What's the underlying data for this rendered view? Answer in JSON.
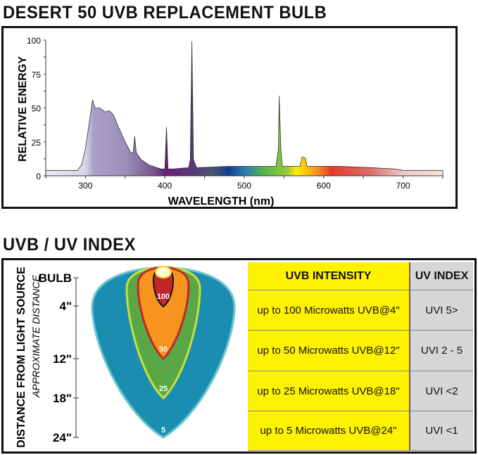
{
  "title": "DESERT 50 UVB REPLACEMENT BULB",
  "section2_title": "UVB / UV INDEX",
  "chart_data": {
    "type": "area",
    "xlabel": "WAVELENGTH (nm)",
    "ylabel": "RELATIVE ENERGY",
    "xlim": [
      250,
      750
    ],
    "ylim": [
      0,
      100
    ],
    "xticks": [
      300,
      400,
      500,
      600,
      700
    ],
    "yticks": [
      0,
      25,
      50,
      75,
      100
    ],
    "grid": false,
    "fill": "visible spectrum gradient",
    "points": [
      [
        250,
        4
      ],
      [
        290,
        4
      ],
      [
        295,
        8
      ],
      [
        300,
        20
      ],
      [
        305,
        40
      ],
      [
        309,
        56
      ],
      [
        312,
        50
      ],
      [
        318,
        50
      ],
      [
        325,
        47
      ],
      [
        330,
        48
      ],
      [
        335,
        45
      ],
      [
        340,
        38
      ],
      [
        350,
        25
      ],
      [
        357,
        17
      ],
      [
        360,
        17
      ],
      [
        362,
        29
      ],
      [
        364,
        17
      ],
      [
        370,
        12
      ],
      [
        380,
        8
      ],
      [
        395,
        5
      ],
      [
        400,
        5
      ],
      [
        402,
        36
      ],
      [
        404,
        5
      ],
      [
        410,
        5
      ],
      [
        430,
        6
      ],
      [
        432,
        12
      ],
      [
        434,
        99
      ],
      [
        436,
        12
      ],
      [
        440,
        6
      ],
      [
        480,
        7
      ],
      [
        540,
        7
      ],
      [
        543,
        20
      ],
      [
        544,
        59
      ],
      [
        546,
        20
      ],
      [
        548,
        7
      ],
      [
        570,
        7
      ],
      [
        573,
        14
      ],
      [
        577,
        13
      ],
      [
        579,
        7
      ],
      [
        620,
        7
      ],
      [
        660,
        6
      ],
      [
        690,
        5
      ],
      [
        700,
        4
      ],
      [
        750,
        4
      ]
    ]
  },
  "diagram": {
    "axis_title": "DISTANCE FROM LIGHT SOURCE",
    "axis_subtitle": "APPROXIMATE DISTANCE",
    "ticks": [
      "BULB",
      "4\"",
      "12\"",
      "18\"",
      "24\""
    ],
    "zones": [
      {
        "label": "5",
        "color": "#1b8db0"
      },
      {
        "label": "25",
        "color": "#5aa845"
      },
      {
        "label": "50",
        "color": "#f7941d"
      },
      {
        "label": "100",
        "color": "#c1272d"
      }
    ]
  },
  "table": {
    "headers": [
      "UVB INTENSITY",
      "UV INDEX"
    ],
    "rows": [
      [
        "up to 100 Microwatts UVB@4\"",
        "UVI 5>"
      ],
      [
        "up to 50 Microwatts UVB@12\"",
        "UVI 2 - 5"
      ],
      [
        "up to 25 Microwatts UVB@18\"",
        "UVI <2"
      ],
      [
        "up to 5 Microwatts UVB@24\"",
        "UVI <1"
      ]
    ]
  }
}
